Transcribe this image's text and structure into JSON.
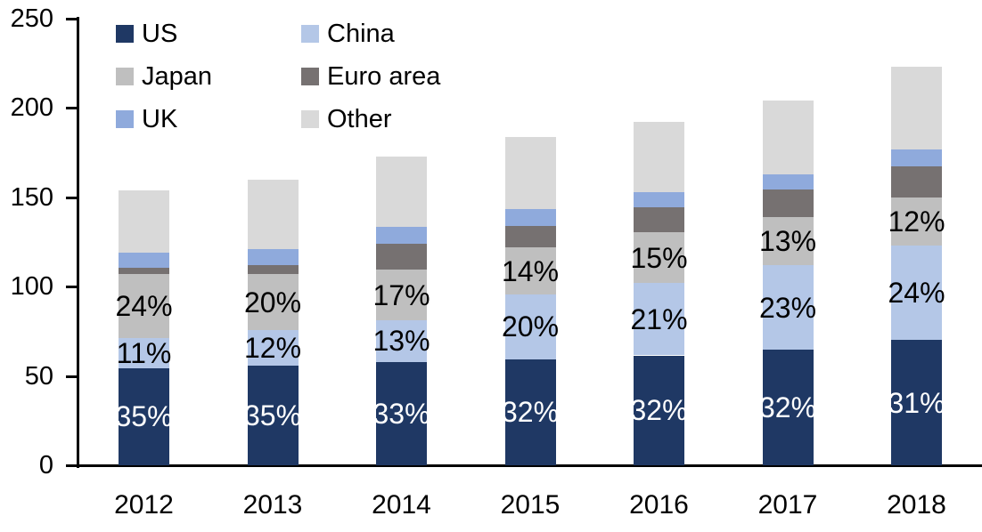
{
  "chart_data": {
    "type": "bar",
    "stacked": true,
    "title": "",
    "xlabel": "",
    "ylabel": "",
    "categories": [
      "2012",
      "2013",
      "2014",
      "2015",
      "2016",
      "2017",
      "2018"
    ],
    "series": [
      {
        "name": "US",
        "color": "#1F3864",
        "values": [
          54.5,
          56,
          58,
          59.5,
          61.5,
          64.5,
          70
        ],
        "labels": [
          "35%",
          "35%",
          "33%",
          "32%",
          "32%",
          "32%",
          "31%"
        ],
        "label_color": "#FFFFFF"
      },
      {
        "name": "China",
        "color": "#B4C7E7",
        "values": [
          16.5,
          19.5,
          23,
          36,
          40.5,
          47.5,
          53
        ],
        "labels": [
          "11%",
          "12%",
          "13%",
          "20%",
          "21%",
          "23%",
          "24%"
        ],
        "label_color": "#000000"
      },
      {
        "name": "Japan",
        "color": "#BFBFBF",
        "values": [
          36,
          31.5,
          28.5,
          26.5,
          28.5,
          27,
          27
        ],
        "labels": [
          "24%",
          "20%",
          "17%",
          "14%",
          "15%",
          "13%",
          "12%"
        ],
        "label_color": "#000000"
      },
      {
        "name": "Euro area",
        "color": "#767171",
        "values": [
          3.5,
          5,
          14.5,
          12,
          14,
          15.5,
          17.5
        ],
        "labels": null
      },
      {
        "name": "UK",
        "color": "#8FAADC",
        "values": [
          8.5,
          9,
          9.5,
          9.5,
          8.5,
          8.5,
          9.5
        ],
        "labels": null
      },
      {
        "name": "Other",
        "color": "#D9D9D9",
        "values": [
          35,
          39,
          39.5,
          40.5,
          39,
          41,
          46
        ],
        "labels": null
      }
    ],
    "totals": [
      154,
      160,
      173,
      184,
      192,
      204,
      223
    ],
    "ylim": [
      0,
      250
    ],
    "yticks": [
      0,
      50,
      100,
      150,
      200,
      250
    ],
    "grid": false,
    "legend_position": "top-left",
    "legend_columns": [
      [
        "US",
        "Japan",
        "UK"
      ],
      [
        "China",
        "Euro area",
        "Other"
      ]
    ],
    "axis_color": "#000000",
    "background_color": "#FFFFFF"
  }
}
